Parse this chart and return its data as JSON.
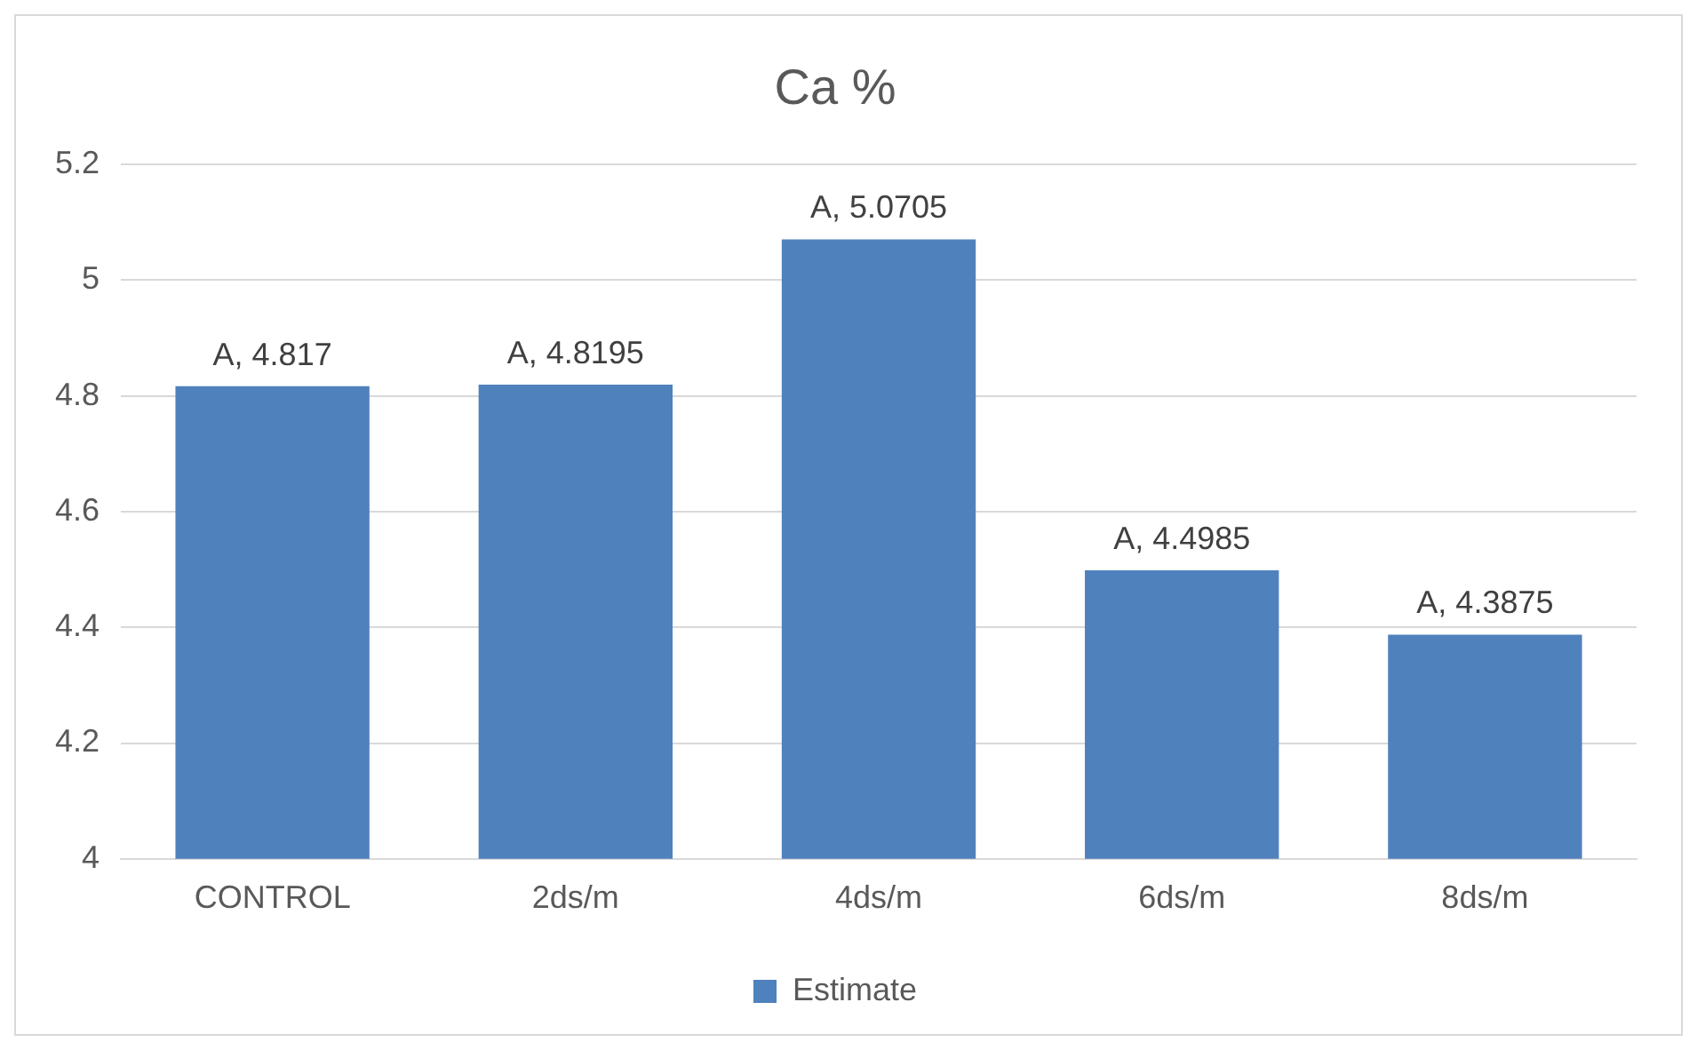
{
  "chart_data": {
    "type": "bar",
    "title": "Ca %",
    "categories": [
      "CONTROL",
      "2ds/m",
      "4ds/m",
      "6ds/m",
      "8ds/m"
    ],
    "series": [
      {
        "name": "Estimate",
        "color": "#4f81bd",
        "values": [
          4.817,
          4.8195,
          5.0705,
          4.4985,
          4.3875
        ],
        "value_labels": [
          "A, 4.817",
          "A, 4.8195",
          "A, 5.0705",
          "A, 4.4985",
          "A, 4.3875"
        ]
      }
    ],
    "ylim": [
      4,
      5.2
    ],
    "yticks": [
      4,
      4.2,
      4.4,
      4.6,
      4.8,
      5,
      5.2
    ],
    "grid": "y",
    "legend": "bottom"
  }
}
